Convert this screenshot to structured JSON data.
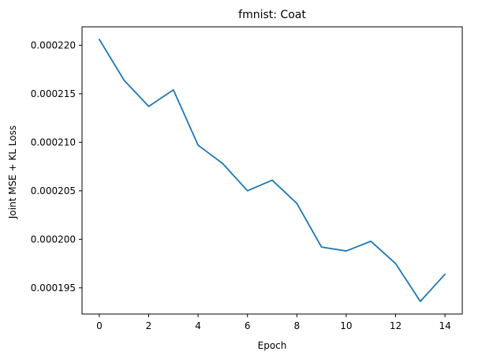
{
  "chart_data": {
    "type": "line",
    "title": "fmnist: Coat",
    "xlabel": "Epoch",
    "ylabel": "Joint MSE + KL Loss",
    "x": [
      0,
      1,
      2,
      3,
      4,
      5,
      6,
      7,
      8,
      9,
      10,
      11,
      12,
      13,
      14
    ],
    "series": [
      {
        "values": [
          0.0002206,
          0.0002164,
          0.0002137,
          0.0002154,
          0.0002097,
          0.0002078,
          0.000205,
          0.0002061,
          0.0002037,
          0.0001992,
          0.0001988,
          0.0001998,
          0.0001975,
          0.0001936,
          0.0001964
        ],
        "color": "#1f77b4"
      }
    ],
    "xticks": [
      "0",
      "2",
      "4",
      "6",
      "8",
      "10",
      "12",
      "14"
    ],
    "yticks": [
      "0.000195",
      "0.000200",
      "0.000205",
      "0.000210",
      "0.000215",
      "0.000220"
    ],
    "xlim": [
      -0.7,
      14.7
    ],
    "ylim": [
      0.0001923,
      0.0002219
    ],
    "grid": false,
    "legend": "none"
  }
}
